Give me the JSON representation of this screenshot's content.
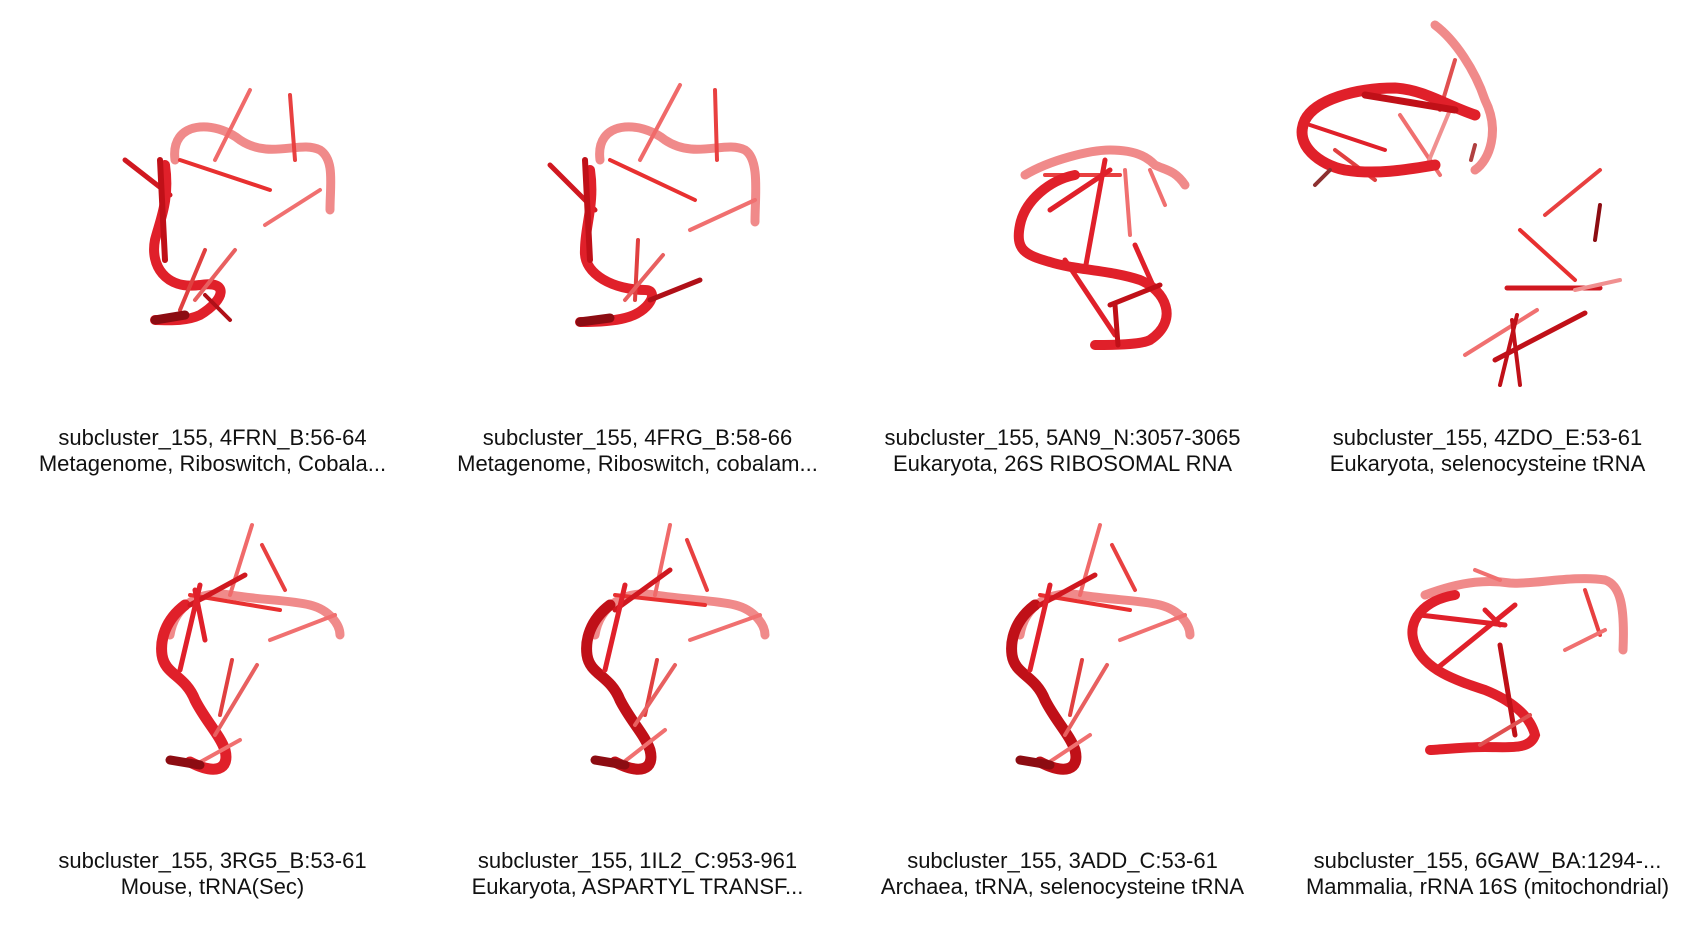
{
  "panels": [
    {
      "title": "subcluster_155, 4FRN_B:56-64",
      "subtitle": "Metagenome, Riboswitch, Cobala..."
    },
    {
      "title": "subcluster_155, 4FRG_B:58-66",
      "subtitle": "Metagenome, Riboswitch, cobalam..."
    },
    {
      "title": "subcluster_155, 5AN9_N:3057-3065",
      "subtitle": "Eukaryota, 26S RIBOSOMAL RNA"
    },
    {
      "title": "subcluster_155, 4ZDO_E:53-61",
      "subtitle": "Eukaryota, selenocysteine tRNA"
    },
    {
      "title": "subcluster_155, 3RG5_B:53-61",
      "subtitle": "Mouse, tRNA(Sec)"
    },
    {
      "title": "subcluster_155, 1IL2_C:953-961",
      "subtitle": "Eukaryota, ASPARTYL TRANSF..."
    },
    {
      "title": "subcluster_155, 3ADD_C:53-61",
      "subtitle": "Archaea, tRNA, selenocysteine tRNA"
    },
    {
      "title": "subcluster_155, 6GAW_BA:1294-...",
      "subtitle": "Mammalia, rRNA 16S (mitochondrial)"
    }
  ],
  "colors": {
    "backbone": "#e0202a",
    "backbone_light": "#f08a8a",
    "backbone_dark": "#8c0c12"
  }
}
